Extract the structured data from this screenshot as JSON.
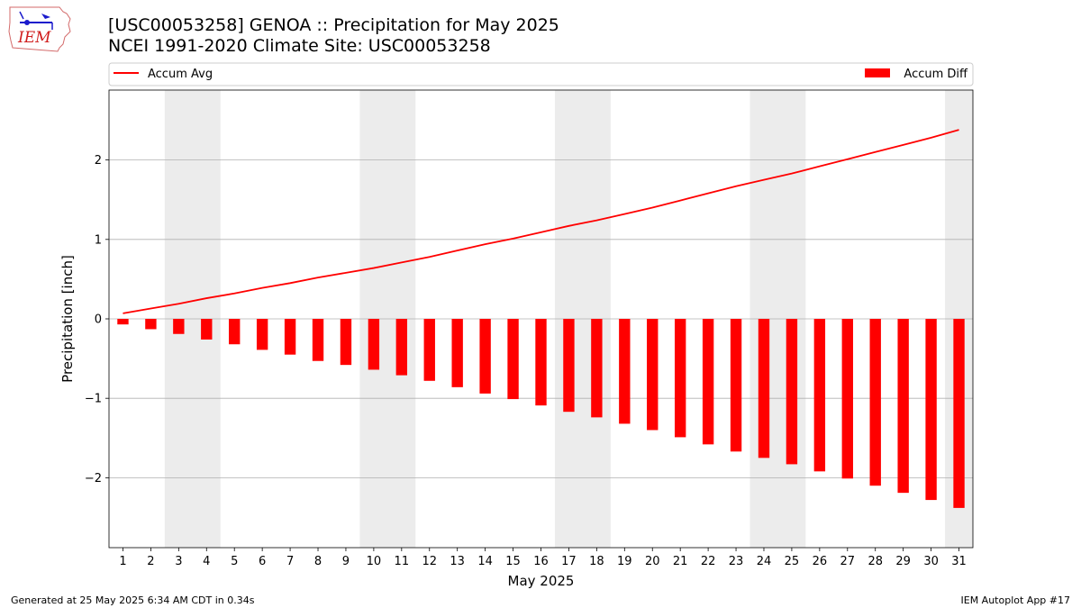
{
  "logo": {
    "text": "IEM"
  },
  "title": {
    "line1": "[USC00053258] GENOA :: Precipitation for May 2025",
    "line2": "NCEI 1991-2020 Climate Site: USC00053258"
  },
  "footer": {
    "left": "Generated at 25 May 2025 6:34 AM CDT in 0.34s",
    "right": "IEM Autoplot App #17"
  },
  "colors": {
    "avg_line": "#ff0000",
    "diff_bar": "#ff0000",
    "weekend_band": "#ececec",
    "grid": "#b0b0b0"
  },
  "chart_data": {
    "type": "bar",
    "xlabel": "May 2025",
    "ylabel": "Precipitation [inch]",
    "ylim": [
      -2.88,
      2.88
    ],
    "yticks": [
      -2,
      -1,
      0,
      1,
      2
    ],
    "ytick_labels": [
      "−2",
      "−1",
      "0",
      "1",
      "2"
    ],
    "grid": "horizontal",
    "legend_placement": "top, above plot",
    "x": [
      1,
      2,
      3,
      4,
      5,
      6,
      7,
      8,
      9,
      10,
      11,
      12,
      13,
      14,
      15,
      16,
      17,
      18,
      19,
      20,
      21,
      22,
      23,
      24,
      25,
      26,
      27,
      28,
      29,
      30,
      31
    ],
    "x_tick_labels": [
      "1",
      "2",
      "3",
      "4",
      "5",
      "6",
      "7",
      "8",
      "9",
      "10",
      "11",
      "12",
      "13",
      "14",
      "15",
      "16",
      "17",
      "18",
      "19",
      "20",
      "21",
      "22",
      "23",
      "24",
      "25",
      "26",
      "27",
      "28",
      "29",
      "30",
      "31"
    ],
    "weekend_days": [
      3,
      4,
      10,
      11,
      17,
      18,
      24,
      25,
      31
    ],
    "series": [
      {
        "name": "Accum Avg",
        "type": "line",
        "values": [
          0.07,
          0.13,
          0.19,
          0.26,
          0.32,
          0.39,
          0.45,
          0.52,
          0.58,
          0.64,
          0.71,
          0.78,
          0.86,
          0.94,
          1.01,
          1.09,
          1.17,
          1.24,
          1.32,
          1.4,
          1.49,
          1.58,
          1.67,
          1.75,
          1.83,
          1.92,
          2.01,
          2.1,
          2.19,
          2.28,
          2.38
        ]
      },
      {
        "name": "Accum Diff",
        "type": "bar",
        "values": [
          -0.07,
          -0.13,
          -0.19,
          -0.26,
          -0.32,
          -0.39,
          -0.45,
          -0.53,
          -0.58,
          -0.64,
          -0.71,
          -0.78,
          -0.86,
          -0.94,
          -1.01,
          -1.09,
          -1.17,
          -1.24,
          -1.32,
          -1.4,
          -1.49,
          -1.58,
          -1.67,
          -1.75,
          -1.83,
          -1.92,
          -2.01,
          -2.1,
          -2.19,
          -2.28,
          -2.38
        ]
      }
    ]
  }
}
